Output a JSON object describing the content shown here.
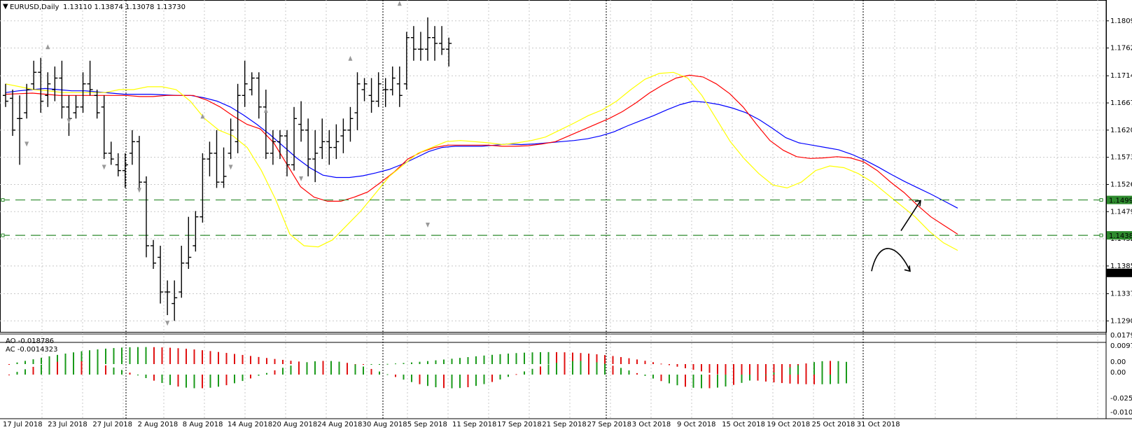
{
  "header": {
    "symbol_label": "EURUSD,Daily",
    "ohlc": "1.13110 1.13874 1.13078 1.13730"
  },
  "price_axis": {
    "ticks": [
      "1.18090",
      "1.17620",
      "1.17140",
      "1.16670",
      "1.16200",
      "1.15730",
      "1.15260",
      "1.14790",
      "1.14320",
      "1.13850",
      "1.13370",
      "1.12900"
    ],
    "hline_labels": [
      "1.14992",
      "1.14380"
    ],
    "current_price_label": "1.13730"
  },
  "ao_panel": {
    "label": "AO -0.018786",
    "ticks": [
      "0.017911",
      "0.00",
      "-0.025911"
    ]
  },
  "ac_panel": {
    "label": "AC -0.0014323",
    "ticks": [
      "0.009726",
      "0.00",
      "-0.010426"
    ]
  },
  "date_labels": [
    "17 Jul 2018",
    "23 Jul 2018",
    "27 Jul 2018",
    "2 Aug 2018",
    "8 Aug 2018",
    "14 Aug 2018",
    "20 Aug 2018",
    "24 Aug 2018",
    "30 Aug 2018",
    "5 Sep 2018",
    "11 Sep 2018",
    "17 Sep 2018",
    "21 Sep 2018",
    "27 Sep 2018",
    "3 Oct 2018",
    "9 Oct 2018",
    "15 Oct 2018",
    "19 Oct 2018",
    "25 Oct 2018",
    "31 Oct 2018"
  ],
  "chart_data": {
    "type": "bar",
    "subtype": "ohlc",
    "symbol": "EURUSD",
    "timeframe": "Daily",
    "price_range": [
      1.1271,
      1.1839
    ],
    "moving_averages": [
      {
        "color": "#0000ff",
        "values": [
          1.1685,
          1.1688,
          1.169,
          1.1692,
          1.169,
          1.1688,
          1.1688,
          1.1686,
          1.1684,
          1.1682,
          1.1682,
          1.1682,
          1.1681,
          1.168,
          1.168,
          1.1676,
          1.167,
          1.166,
          1.1646,
          1.163,
          1.1612,
          1.1592,
          1.1572,
          1.1555,
          1.1542,
          1.1538,
          1.1538,
          1.1541,
          1.1546,
          1.1552,
          1.1561,
          1.1572,
          1.1583,
          1.159,
          1.1592,
          1.1592,
          1.1592,
          1.1594,
          1.1596,
          1.1595,
          1.1596,
          1.1598,
          1.16,
          1.1602,
          1.1605,
          1.161,
          1.1617,
          1.1627,
          1.1636,
          1.1645,
          1.1655,
          1.1664,
          1.167,
          1.1668,
          1.1664,
          1.1658,
          1.165,
          1.1638,
          1.1623,
          1.1607,
          1.1598,
          1.1594,
          1.159,
          1.1586,
          1.1578,
          1.1568,
          1.1556,
          1.1543,
          1.1531,
          1.152,
          1.1509,
          1.1497,
          1.1485
        ]
      },
      {
        "color": "#ff0000",
        "values": [
          1.1682,
          1.1683,
          1.1684,
          1.1682,
          1.168,
          1.168,
          1.168,
          1.168,
          1.168,
          1.168,
          1.1678,
          1.1678,
          1.168,
          1.168,
          1.168,
          1.1672,
          1.166,
          1.1644,
          1.163,
          1.1622,
          1.1598,
          1.156,
          1.1522,
          1.1504,
          1.1497,
          1.1497,
          1.1504,
          1.1513,
          1.153,
          1.1548,
          1.157,
          1.1582,
          1.159,
          1.1594,
          1.1594,
          1.1594,
          1.1594,
          1.1592,
          1.1592,
          1.1593,
          1.1596,
          1.16,
          1.161,
          1.162,
          1.163,
          1.164,
          1.1652,
          1.1667,
          1.1684,
          1.1698,
          1.171,
          1.1715,
          1.1712,
          1.17,
          1.1683,
          1.166,
          1.163,
          1.1602,
          1.1585,
          1.1574,
          1.1571,
          1.1572,
          1.1574,
          1.1572,
          1.1565,
          1.155,
          1.153,
          1.1512,
          1.149,
          1.147,
          1.1455,
          1.144
        ]
      },
      {
        "color": "#ffff00",
        "values": [
          1.17,
          1.1695,
          1.169,
          1.1688,
          1.1685,
          1.1685,
          1.1685,
          1.1685,
          1.169,
          1.169,
          1.1695,
          1.1695,
          1.169,
          1.167,
          1.164,
          1.162,
          1.161,
          1.159,
          1.155,
          1.15,
          1.144,
          1.142,
          1.1418,
          1.143,
          1.1455,
          1.148,
          1.151,
          1.154,
          1.156,
          1.158,
          1.159,
          1.16,
          1.1602,
          1.16,
          1.1598,
          1.1595,
          1.1598,
          1.1602,
          1.1608,
          1.162,
          1.1632,
          1.1645,
          1.1655,
          1.167,
          1.169,
          1.1708,
          1.1718,
          1.172,
          1.171,
          1.168,
          1.164,
          1.16,
          1.157,
          1.1545,
          1.1525,
          1.152,
          1.153,
          1.155,
          1.1558,
          1.1555,
          1.1545,
          1.153,
          1.151,
          1.149,
          1.147,
          1.1445,
          1.1425,
          1.1412
        ]
      }
    ],
    "horizontal_levels": [
      1.14992,
      1.1438
    ],
    "projections": [
      {
        "direction": "up",
        "target": 1.1498
      },
      {
        "direction": "up-then-down",
        "peak": 1.141,
        "end": 1.1376
      }
    ],
    "bars": [
      {
        "o": 1.168,
        "h": 1.17,
        "l": 1.166,
        "c": 1.167
      },
      {
        "o": 1.1675,
        "h": 1.169,
        "l": 1.161,
        "c": 1.162
      },
      {
        "o": 1.164,
        "h": 1.168,
        "l": 1.156,
        "c": 1.164
      },
      {
        "o": 1.165,
        "h": 1.17,
        "l": 1.164,
        "c": 1.169
      },
      {
        "o": 1.17,
        "h": 1.174,
        "l": 1.169,
        "c": 1.172
      },
      {
        "o": 1.172,
        "h": 1.1745,
        "l": 1.165,
        "c": 1.167
      },
      {
        "o": 1.168,
        "h": 1.172,
        "l": 1.166,
        "c": 1.17
      },
      {
        "o": 1.169,
        "h": 1.173,
        "l": 1.167,
        "c": 1.171
      },
      {
        "o": 1.171,
        "h": 1.174,
        "l": 1.164,
        "c": 1.166
      },
      {
        "o": 1.166,
        "h": 1.168,
        "l": 1.161,
        "c": 1.164
      },
      {
        "o": 1.165,
        "h": 1.168,
        "l": 1.164,
        "c": 1.166
      },
      {
        "o": 1.166,
        "h": 1.172,
        "l": 1.165,
        "c": 1.17
      },
      {
        "o": 1.17,
        "h": 1.174,
        "l": 1.168,
        "c": 1.169
      },
      {
        "o": 1.168,
        "h": 1.169,
        "l": 1.164,
        "c": 1.165
      },
      {
        "o": 1.166,
        "h": 1.168,
        "l": 1.157,
        "c": 1.158
      },
      {
        "o": 1.158,
        "h": 1.16,
        "l": 1.156,
        "c": 1.157
      },
      {
        "o": 1.156,
        "h": 1.158,
        "l": 1.154,
        "c": 1.155
      },
      {
        "o": 1.155,
        "h": 1.158,
        "l": 1.152,
        "c": 1.156
      },
      {
        "o": 1.158,
        "h": 1.162,
        "l": 1.156,
        "c": 1.16
      },
      {
        "o": 1.16,
        "h": 1.161,
        "l": 1.152,
        "c": 1.153
      },
      {
        "o": 1.153,
        "h": 1.154,
        "l": 1.14,
        "c": 1.142
      },
      {
        "o": 1.142,
        "h": 1.143,
        "l": 1.138,
        "c": 1.139
      },
      {
        "o": 1.14,
        "h": 1.142,
        "l": 1.132,
        "c": 1.134
      },
      {
        "o": 1.134,
        "h": 1.136,
        "l": 1.13,
        "c": 1.134
      },
      {
        "o": 1.132,
        "h": 1.136,
        "l": 1.129,
        "c": 1.133
      },
      {
        "o": 1.134,
        "h": 1.142,
        "l": 1.133,
        "c": 1.139
      },
      {
        "o": 1.139,
        "h": 1.147,
        "l": 1.138,
        "c": 1.14
      },
      {
        "o": 1.142,
        "h": 1.148,
        "l": 1.141,
        "c": 1.147
      },
      {
        "o": 1.147,
        "h": 1.158,
        "l": 1.146,
        "c": 1.157
      },
      {
        "o": 1.157,
        "h": 1.16,
        "l": 1.154,
        "c": 1.158
      },
      {
        "o": 1.158,
        "h": 1.162,
        "l": 1.152,
        "c": 1.153
      },
      {
        "o": 1.153,
        "h": 1.159,
        "l": 1.152,
        "c": 1.154
      },
      {
        "o": 1.158,
        "h": 1.164,
        "l": 1.157,
        "c": 1.162
      },
      {
        "o": 1.16,
        "h": 1.17,
        "l": 1.158,
        "c": 1.168
      },
      {
        "o": 1.168,
        "h": 1.174,
        "l": 1.166,
        "c": 1.17
      },
      {
        "o": 1.169,
        "h": 1.172,
        "l": 1.168,
        "c": 1.171
      },
      {
        "o": 1.171,
        "h": 1.172,
        "l": 1.164,
        "c": 1.166
      },
      {
        "o": 1.166,
        "h": 1.169,
        "l": 1.157,
        "c": 1.158
      },
      {
        "o": 1.158,
        "h": 1.162,
        "l": 1.156,
        "c": 1.16
      },
      {
        "o": 1.16,
        "h": 1.162,
        "l": 1.157,
        "c": 1.161
      },
      {
        "o": 1.161,
        "h": 1.162,
        "l": 1.154,
        "c": 1.156
      },
      {
        "o": 1.156,
        "h": 1.166,
        "l": 1.155,
        "c": 1.164
      },
      {
        "o": 1.163,
        "h": 1.167,
        "l": 1.16,
        "c": 1.162
      },
      {
        "o": 1.162,
        "h": 1.164,
        "l": 1.154,
        "c": 1.157
      },
      {
        "o": 1.157,
        "h": 1.162,
        "l": 1.153,
        "c": 1.158
      },
      {
        "o": 1.159,
        "h": 1.164,
        "l": 1.157,
        "c": 1.16
      },
      {
        "o": 1.16,
        "h": 1.162,
        "l": 1.156,
        "c": 1.159
      },
      {
        "o": 1.159,
        "h": 1.163,
        "l": 1.157,
        "c": 1.16
      },
      {
        "o": 1.161,
        "h": 1.164,
        "l": 1.158,
        "c": 1.162
      },
      {
        "o": 1.162,
        "h": 1.166,
        "l": 1.16,
        "c": 1.164
      },
      {
        "o": 1.165,
        "h": 1.172,
        "l": 1.162,
        "c": 1.17
      },
      {
        "o": 1.169,
        "h": 1.171,
        "l": 1.167,
        "c": 1.17
      },
      {
        "o": 1.168,
        "h": 1.171,
        "l": 1.165,
        "c": 1.167
      },
      {
        "o": 1.167,
        "h": 1.172,
        "l": 1.166,
        "c": 1.17
      },
      {
        "o": 1.169,
        "h": 1.171,
        "l": 1.166,
        "c": 1.169
      },
      {
        "o": 1.169,
        "h": 1.173,
        "l": 1.168,
        "c": 1.171
      },
      {
        "o": 1.17,
        "h": 1.173,
        "l": 1.166,
        "c": 1.168
      },
      {
        "o": 1.17,
        "h": 1.179,
        "l": 1.169,
        "c": 1.178
      },
      {
        "o": 1.178,
        "h": 1.18,
        "l": 1.174,
        "c": 1.176
      },
      {
        "o": 1.176,
        "h": 1.179,
        "l": 1.174,
        "c": 1.176
      },
      {
        "o": 1.176,
        "h": 1.1815,
        "l": 1.174,
        "c": 1.178
      },
      {
        "o": 1.178,
        "h": 1.18,
        "l": 1.174,
        "c": 1.177
      },
      {
        "o": 1.177,
        "h": 1.18,
        "l": 1.175,
        "c": 1.176
      },
      {
        "o": 1.176,
        "h": 1.178,
        "l": 1.173,
        "c": 1.177
      }
    ]
  }
}
